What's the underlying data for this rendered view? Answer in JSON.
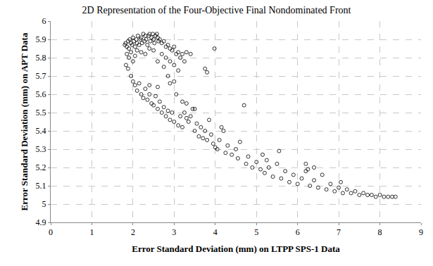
{
  "chart_data": {
    "type": "scatter",
    "title": "2D Representation of the Four-Objective Final Nondominated Front",
    "x_label": "Error Standard Deviation (mm) on LTPP SPS-1 Data",
    "y_label": "Error Standard Deviation (mm) on APT Data",
    "color": "#000000",
    "marker": "open_circle",
    "grid": true,
    "xlim": [
      0,
      9
    ],
    "xticks": [
      0,
      1,
      2,
      3,
      4,
      5,
      6,
      7,
      8,
      9
    ],
    "ylim": [
      4.9,
      6
    ],
    "yticks": [
      4.9,
      5,
      5.1,
      5.2,
      5.3,
      5.4,
      5.5,
      5.6,
      5.7,
      5.8,
      5.9,
      6
    ],
    "x": [
      1.8,
      1.82,
      1.85,
      1.88,
      1.9,
      1.92,
      1.95,
      1.98,
      2.0,
      2.02,
      2.05,
      2.08,
      2.1,
      2.12,
      2.15,
      2.18,
      2.2,
      2.22,
      2.25,
      2.28,
      2.3,
      2.32,
      2.35,
      2.38,
      2.4,
      2.42,
      2.45,
      2.48,
      2.5,
      2.52,
      2.55,
      2.58,
      2.6,
      2.62,
      1.85,
      1.9,
      1.95,
      2.0,
      2.05,
      2.1,
      2.2,
      2.3,
      2.4,
      2.5,
      1.83,
      1.88,
      2.65,
      2.7,
      2.75,
      2.8,
      2.85,
      2.9,
      2.95,
      3.0,
      3.05,
      3.1,
      3.15,
      3.2,
      3.25,
      3.3,
      2.7,
      2.8,
      2.9,
      3.0,
      3.1,
      2.6,
      2.75,
      3.4,
      3.75,
      3.8,
      3.98,
      2.85,
      3.0,
      1.95,
      2.0,
      2.05,
      2.1,
      2.15,
      2.2,
      2.25,
      2.3,
      2.35,
      2.4,
      2.45,
      2.5,
      2.55,
      2.6,
      2.65,
      2.7,
      2.75,
      2.8,
      2.85,
      2.9,
      2.95,
      3.0,
      3.05,
      3.1,
      3.15,
      3.2,
      3.25,
      3.3,
      3.35,
      3.4,
      3.45,
      3.5,
      3.55,
      3.6,
      3.65,
      3.7,
      3.75,
      3.8,
      3.85,
      3.9,
      3.95,
      4.0,
      4.05,
      4.1,
      4.2,
      4.25,
      4.3,
      4.4,
      4.5,
      4.55,
      4.6,
      4.7,
      4.75,
      4.8,
      4.9,
      5.0,
      5.1,
      5.15,
      5.2,
      5.3,
      5.4,
      5.5,
      5.55,
      5.6,
      5.7,
      5.8,
      5.9,
      6.0,
      6.1,
      6.2,
      6.25,
      6.3,
      6.4,
      6.5,
      6.6,
      6.7,
      6.8,
      6.9,
      7.0,
      7.05,
      7.1,
      7.2,
      7.3,
      7.4,
      7.5,
      7.6,
      7.7,
      7.8,
      7.9,
      8.0,
      8.1,
      8.2,
      8.3,
      8.38,
      3.5,
      3.3,
      2.4,
      2.9,
      2.6,
      3.2,
      6.2,
      6.4,
      4.15,
      5.25
    ],
    "values": [
      5.87,
      5.88,
      5.86,
      5.89,
      5.85,
      5.9,
      5.88,
      5.87,
      5.91,
      5.89,
      5.86,
      5.9,
      5.88,
      5.92,
      5.87,
      5.9,
      5.91,
      5.88,
      5.93,
      5.89,
      5.92,
      5.9,
      5.87,
      5.92,
      5.93,
      5.89,
      5.91,
      5.93,
      5.9,
      5.88,
      5.92,
      5.93,
      5.91,
      5.89,
      5.82,
      5.8,
      5.83,
      5.78,
      5.81,
      5.84,
      5.83,
      5.82,
      5.85,
      5.84,
      5.76,
      5.74,
      5.9,
      5.88,
      5.89,
      5.86,
      5.87,
      5.85,
      5.84,
      5.86,
      5.82,
      5.83,
      5.8,
      5.82,
      5.78,
      5.83,
      5.82,
      5.8,
      5.78,
      5.76,
      5.73,
      5.78,
      5.75,
      5.82,
      5.74,
      5.72,
      5.85,
      5.7,
      5.67,
      5.7,
      5.67,
      5.65,
      5.62,
      5.66,
      5.6,
      5.58,
      5.63,
      5.57,
      5.6,
      5.55,
      5.54,
      5.59,
      5.52,
      5.56,
      5.5,
      5.53,
      5.48,
      5.51,
      5.46,
      5.5,
      5.45,
      5.6,
      5.43,
      5.48,
      5.42,
      5.5,
      5.47,
      5.45,
      5.48,
      5.52,
      5.4,
      5.44,
      5.37,
      5.42,
      5.36,
      5.4,
      5.35,
      5.46,
      5.38,
      5.33,
      5.31,
      5.3,
      5.35,
      5.4,
      5.28,
      5.32,
      5.27,
      5.3,
      5.25,
      5.34,
      5.54,
      5.22,
      5.26,
      5.2,
      5.23,
      5.19,
      5.27,
      5.17,
      5.2,
      5.15,
      5.22,
      5.29,
      5.14,
      5.18,
      5.12,
      5.16,
      5.11,
      5.14,
      5.22,
      5.19,
      5.1,
      5.13,
      5.09,
      5.16,
      5.08,
      5.11,
      5.07,
      5.09,
      5.12,
      5.06,
      5.08,
      5.06,
      5.07,
      5.05,
      5.06,
      5.05,
      5.05,
      5.04,
      5.05,
      5.04,
      5.04,
      5.04,
      5.04,
      5.52,
      5.55,
      5.65,
      5.66,
      5.64,
      5.56,
      5.18,
      5.2,
      5.42,
      5.24
    ]
  }
}
